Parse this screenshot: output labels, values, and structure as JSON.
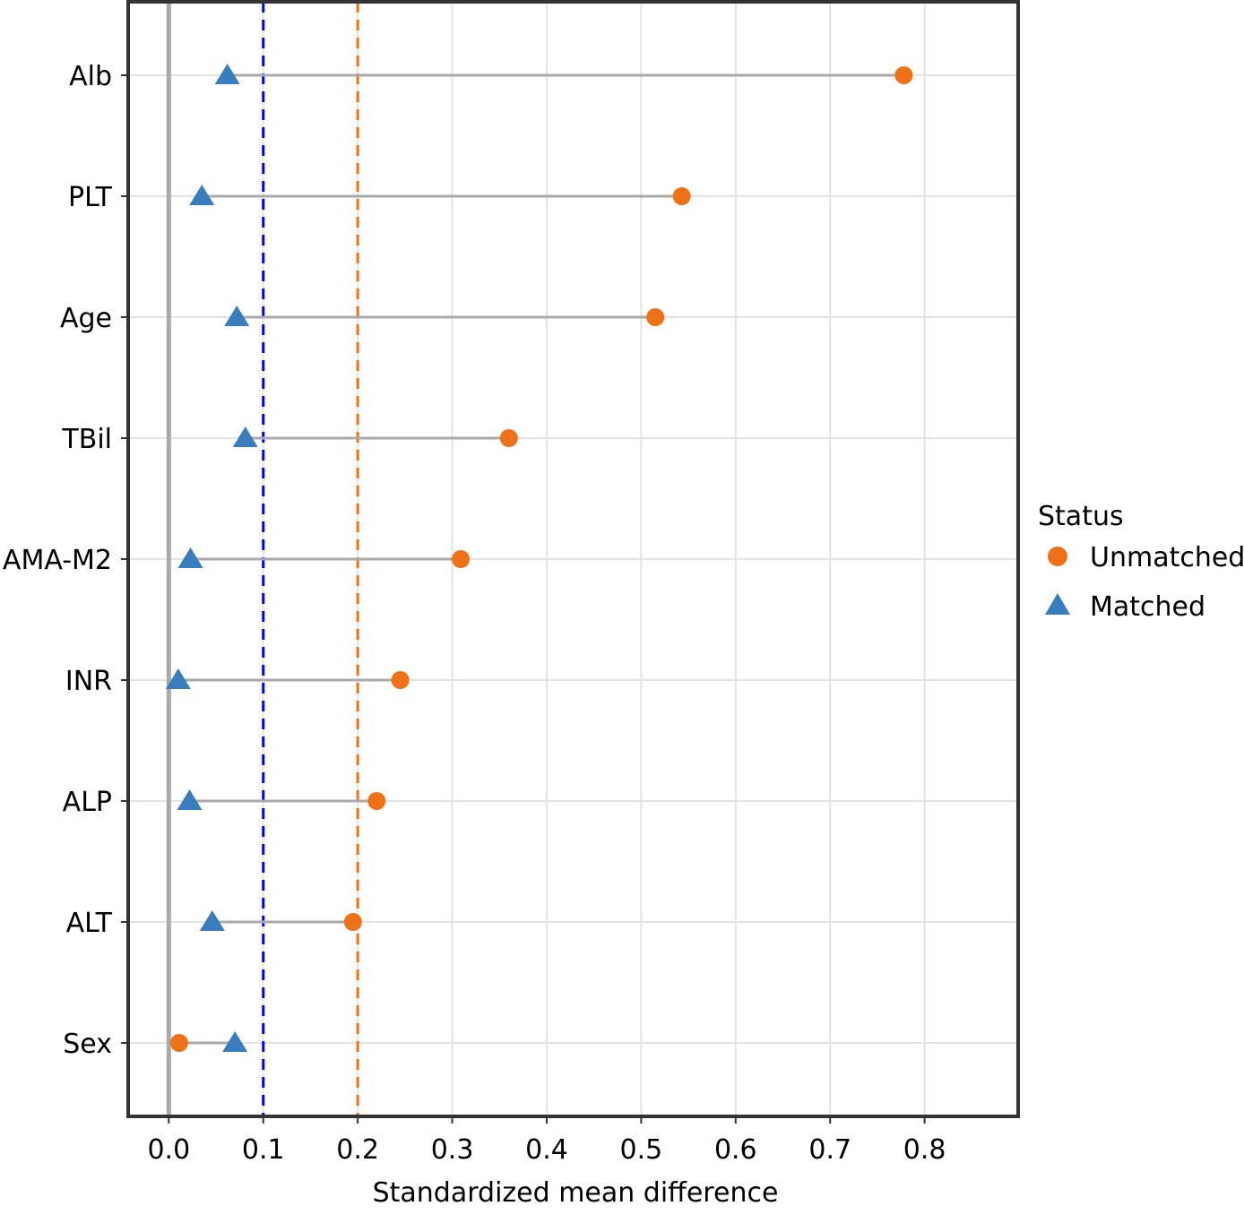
{
  "chart_data": {
    "type": "scatter",
    "subtype": "love-plot",
    "title": "",
    "xlabel": "Standardized mean difference",
    "ylabel": "",
    "xlim": [
      -0.043,
      0.899
    ],
    "x_ticks": [
      "0.0",
      "0.1",
      "0.2",
      "0.3",
      "0.4",
      "0.5",
      "0.6",
      "0.7",
      "0.8"
    ],
    "x_tick_values": [
      0.0,
      0.1,
      0.2,
      0.3,
      0.4,
      0.5,
      0.6,
      0.7,
      0.8
    ],
    "grid": true,
    "categories": [
      "Alb",
      "PLT",
      "Age",
      "TBil",
      "AMA-M2",
      "INR",
      "ALP",
      "ALT",
      "Sex"
    ],
    "series": [
      {
        "name": "Unmatched",
        "marker": "circle",
        "color": "#EE7118",
        "values": [
          0.778,
          0.543,
          0.515,
          0.36,
          0.309,
          0.245,
          0.22,
          0.195,
          0.011
        ]
      },
      {
        "name": "Matched",
        "marker": "triangle",
        "color": "#3A7DBF",
        "values": [
          0.062,
          0.035,
          0.072,
          0.081,
          0.023,
          0.01,
          0.022,
          0.046,
          0.07
        ]
      }
    ],
    "reference_lines": [
      {
        "x": 0.0,
        "color": "#AAAAAA",
        "style": "solid"
      },
      {
        "x": 0.1,
        "color": "#0000FF",
        "style": "dashed"
      },
      {
        "x": 0.2,
        "color": "#EE7118",
        "style": "dashed"
      }
    ],
    "legend": {
      "title": "Status",
      "placement": "right",
      "items": [
        "Unmatched",
        "Matched"
      ]
    }
  }
}
